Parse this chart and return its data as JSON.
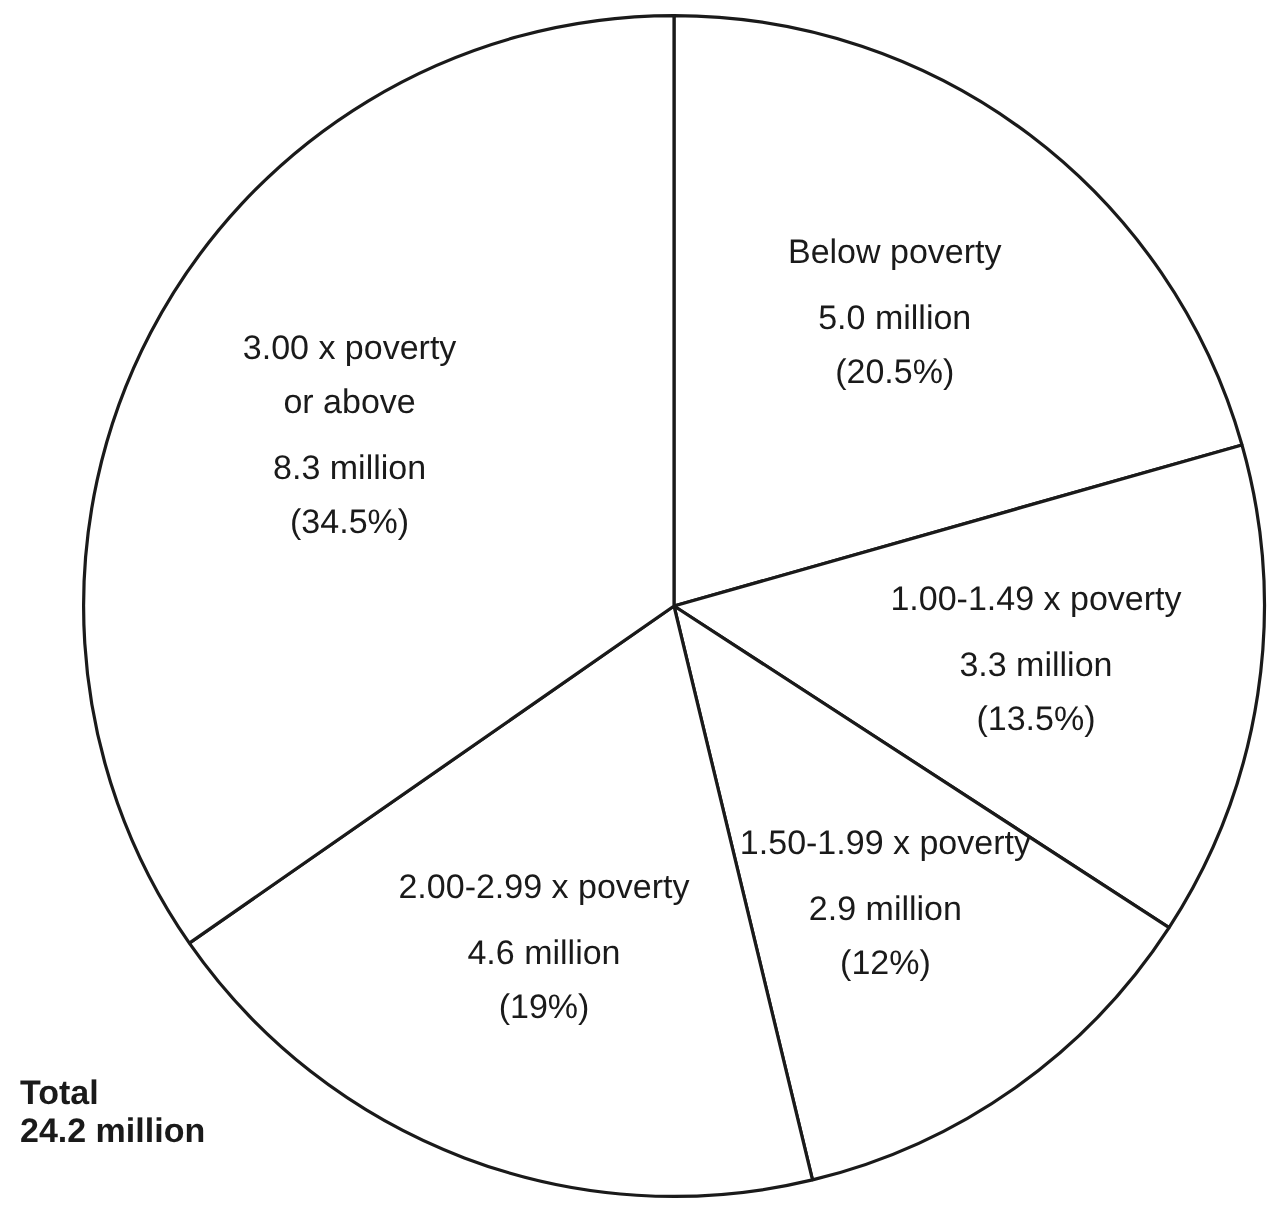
{
  "chart_data": {
    "type": "pie",
    "categories": [
      "Below poverty",
      "1.00-1.49 x poverty",
      "1.50-1.99 x poverty",
      "2.00-2.99 x poverty",
      "3.00 x poverty\nor above"
    ],
    "values": [
      20.5,
      13.5,
      12,
      19,
      34.5
    ],
    "value_labels": [
      "5.0 million\n(20.5%)",
      "3.3 million\n(13.5%)",
      "2.9 million\n(12%)",
      "4.6 million\n(19%)",
      "8.3 million\n(34.5%)"
    ],
    "colors": [
      "#ffffff",
      "#ffffff",
      "#ffffff",
      "#ffffff",
      "#ffffff"
    ],
    "annotations": [
      "Total\n24.2 million"
    ],
    "legend": false
  }
}
